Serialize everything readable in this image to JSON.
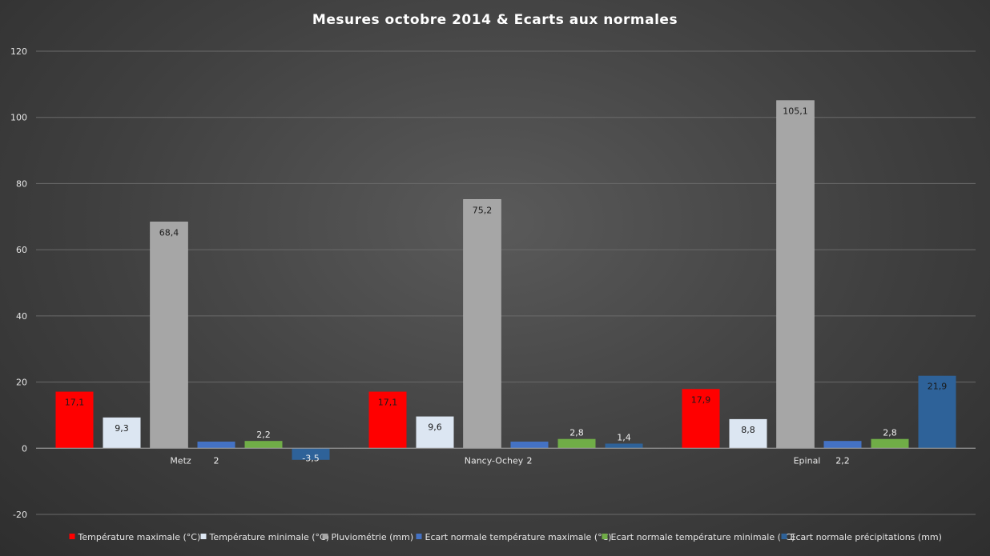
{
  "chart_data": {
    "type": "bar",
    "title": "Mesures  octobre  2014  &  Ecarts  aux  normales",
    "categories": [
      "Metz",
      "Nancy-Ochey",
      "Epinal"
    ],
    "ylim": [
      -20,
      120
    ],
    "yticks": [
      -20,
      0,
      20,
      40,
      60,
      80,
      100,
      120
    ],
    "grid": true,
    "legend_position": "bottom",
    "series": [
      {
        "name": "Température maximale (°C)",
        "color": "#ff0000",
        "values": [
          17.1,
          17.1,
          17.9
        ],
        "labels": [
          "17,1",
          "17,1",
          "17,9"
        ]
      },
      {
        "name": "Température minimale (°C)",
        "color": "#dce6f2",
        "values": [
          9.3,
          9.6,
          8.8
        ],
        "labels": [
          "9,3",
          "9,6",
          "8,8"
        ]
      },
      {
        "name": "Pluviométrie (mm)",
        "color": "#a6a6a6",
        "values": [
          68.4,
          75.2,
          105.1
        ],
        "labels": [
          "68,4",
          "75,2",
          "105,1"
        ]
      },
      {
        "name": "Ecart normale température maximale (°C)",
        "color": "#4472c4",
        "values": [
          2,
          2,
          2.2
        ],
        "labels": [
          "2",
          "2",
          "2,2"
        ]
      },
      {
        "name": "Ecart normale température minimale (°C)",
        "color": "#70ad47",
        "values": [
          2.2,
          2.8,
          2.8
        ],
        "labels": [
          "2,2",
          "2,8",
          "2,8"
        ]
      },
      {
        "name": "Ecart normale précipitations (mm)",
        "color": "#2e6299",
        "values": [
          -3.5,
          1.4,
          21.9
        ],
        "labels": [
          "-3,5",
          "1,4",
          "21,9"
        ]
      }
    ]
  }
}
